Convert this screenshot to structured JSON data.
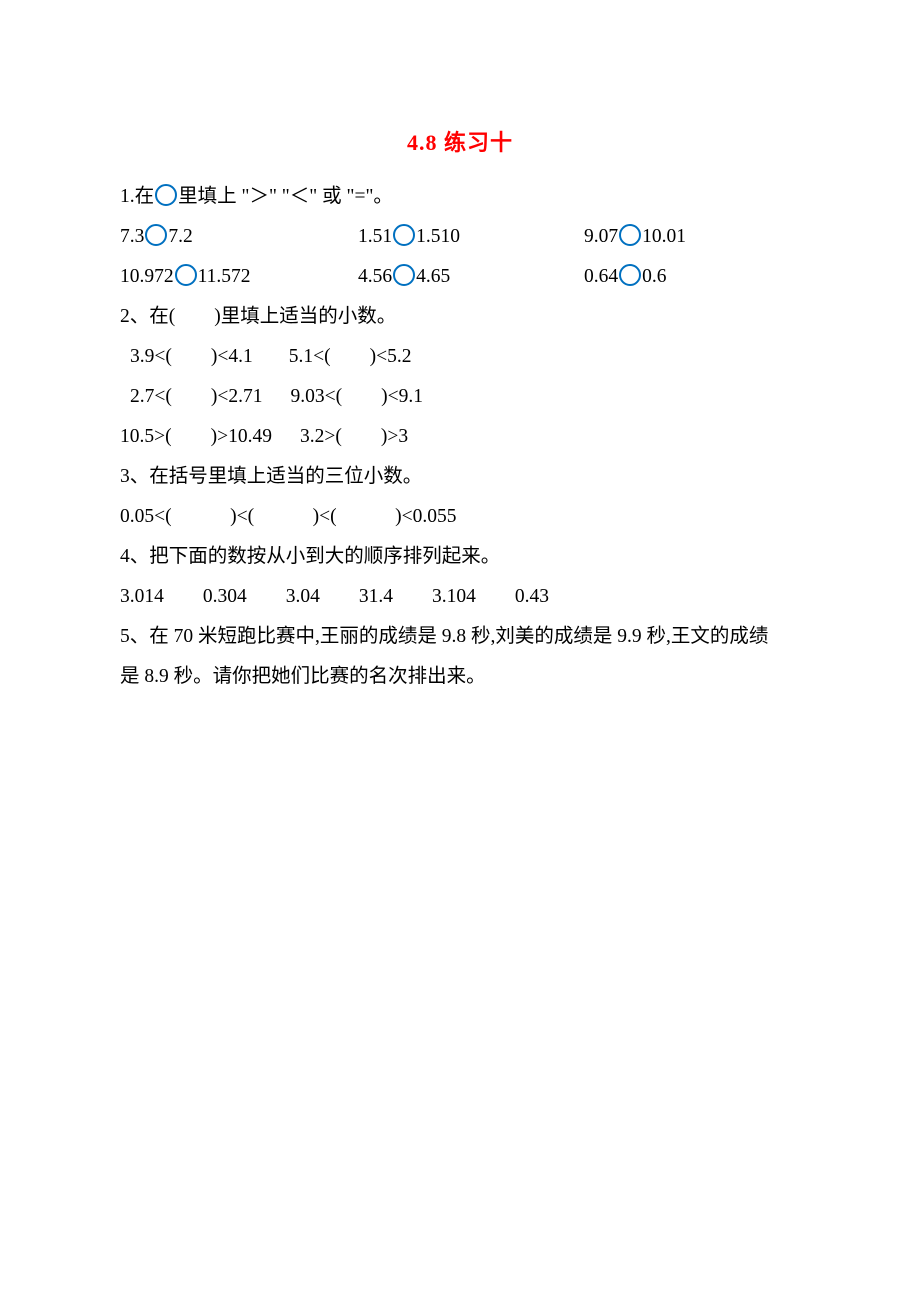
{
  "title": "4.8 练习十",
  "colors": {
    "title_color": "#ff0000",
    "circle_border": "#0070c0",
    "text_color": "#000000",
    "background": "#ffffff"
  },
  "typography": {
    "body_fontsize_pt": 15,
    "title_fontsize_pt": 17,
    "font_family": "SimSun",
    "line_height": 2.05
  },
  "q1": {
    "prompt_pre": "1.在",
    "prompt_post": "里填上 \"＞\" \"＜\" 或 \"=\"。",
    "row1": {
      "a_l": "7.3",
      "a_r": "7.2",
      "b_l": "1.51",
      "b_r": "1.510",
      "c_l": "9.07",
      "c_r": "10.01"
    },
    "row2": {
      "a_l": "10.972",
      "a_r": "11.572",
      "b_l": "4.56",
      "b_r": "4.65",
      "c_l": "0.64",
      "c_r": "0.6"
    }
  },
  "q2": {
    "prompt": "2、在(　　)里填上适当的小数。",
    "row1": {
      "a": "3.9<(　　)<4.1",
      "b": "5.1<(　　)<5.2"
    },
    "row2": {
      "a": "2.7<(　　)<2.71",
      "b": "9.03<(　　)<9.1"
    },
    "row3": {
      "a": "10.5>(　　)>10.49",
      "b": "3.2>(　　)>3"
    }
  },
  "q3": {
    "prompt": "3、在括号里填上适当的三位小数。",
    "line": "0.05<(　　　)<(　　　)<(　　　)<0.055"
  },
  "q4": {
    "prompt": "4、把下面的数按从小到大的顺序排列起来。",
    "numbers": "3.014　　0.304　　3.04　　31.4　　3.104　　0.43"
  },
  "q5": {
    "line1": "5、在 70 米短跑比赛中,王丽的成绩是 9.8 秒,刘美的成绩是 9.9 秒,王文的成绩",
    "line2": "是 8.9 秒。请你把她们比赛的名次排出来。"
  }
}
